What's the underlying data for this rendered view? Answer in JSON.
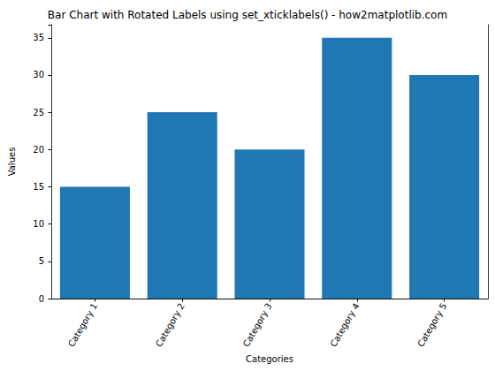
{
  "chart_data": {
    "type": "bar",
    "title": "Bar Chart with Rotated Labels using set_xticklabels() - how2matplotlib.com",
    "x_label": "Categories",
    "y_label": "Values",
    "categories": [
      "Category 1",
      "Category 2",
      "Category 3",
      "Category 4",
      "Category 5"
    ],
    "values": [
      15,
      25,
      20,
      35,
      30
    ],
    "color": "#1f77b4",
    "ylim": [
      0,
      36.75
    ],
    "yticks": [
      0,
      5,
      10,
      15,
      20,
      25,
      30,
      35
    ],
    "grid": false
  }
}
